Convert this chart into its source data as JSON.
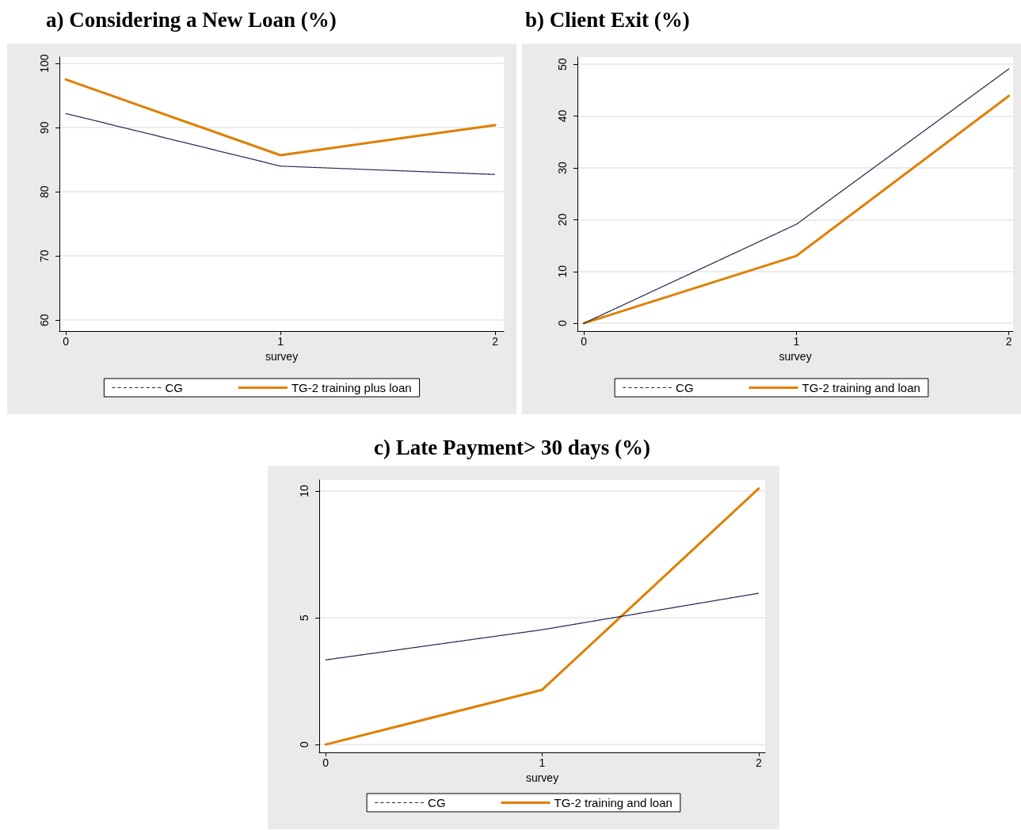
{
  "chart_data": [
    {
      "type": "line",
      "title": "a) Considering a New Loan (%)",
      "xlabel": "survey",
      "x": [
        0,
        1,
        2
      ],
      "xlim": [
        -0.03,
        2.04
      ],
      "xticks": [
        0,
        1,
        2
      ],
      "ylim": [
        58.3,
        101
      ],
      "yticks": [
        60,
        70,
        80,
        90,
        100
      ],
      "grid": "y",
      "legend": "bottom",
      "marker": "none",
      "series": [
        {
          "name": "CG",
          "color": "#1f2a4d",
          "line_style": "dashed",
          "values": [
            92.2,
            84.0,
            82.7
          ]
        },
        {
          "name": "TG-2 training plus loan",
          "color": "#e07f00",
          "line_style": "solid",
          "values": [
            97.5,
            85.7,
            90.4
          ]
        }
      ]
    },
    {
      "type": "line",
      "title": "b) Client Exit (%)",
      "xlabel": "survey",
      "x": [
        0,
        1,
        2
      ],
      "xlim": [
        -0.03,
        2.02
      ],
      "xticks": [
        0,
        1,
        2
      ],
      "ylim": [
        -1.5,
        51.4
      ],
      "yticks": [
        0,
        10,
        20,
        30,
        40,
        50
      ],
      "grid": "y",
      "legend": "bottom",
      "marker": "none",
      "series": [
        {
          "name": "CG",
          "color": "#1f2a4d",
          "line_style": "dashed",
          "values": [
            0,
            19.1,
            49.1
          ]
        },
        {
          "name": "TG-2 training and loan",
          "color": "#e07f00",
          "line_style": "solid",
          "values": [
            0,
            13.0,
            43.9
          ]
        }
      ]
    },
    {
      "type": "line",
      "title": "c) Late Payment> 30 days (%)",
      "xlabel": "survey",
      "x": [
        0,
        1,
        2
      ],
      "xlim": [
        -0.03,
        2.03
      ],
      "xticks": [
        0,
        1,
        2
      ],
      "ylim": [
        -0.31,
        10.44
      ],
      "yticks": [
        0,
        5,
        10
      ],
      "grid": "y",
      "legend": "bottom",
      "marker": "none",
      "series": [
        {
          "name": "CG",
          "color": "#1f2a4d",
          "line_style": "dashed",
          "values": [
            3.34,
            4.53,
            5.97
          ]
        },
        {
          "name": "TG-2 training and loan",
          "color": "#e07f00",
          "line_style": "solid",
          "values": [
            0,
            2.16,
            10.1
          ]
        }
      ]
    }
  ]
}
